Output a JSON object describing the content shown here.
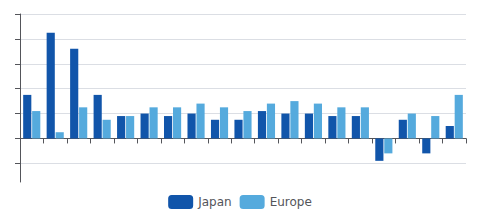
{
  "chart_data": {
    "type": "bar",
    "categories": [
      null,
      null,
      null,
      null,
      null,
      null,
      null,
      null,
      null,
      null,
      null,
      null,
      null,
      null,
      null,
      null,
      null,
      null,
      null
    ],
    "series": [
      {
        "name": "Japan",
        "color": "#1155aa",
        "values": [
          3.5,
          8.5,
          7.2,
          3.5,
          1.8,
          2.0,
          1.8,
          2.0,
          1.5,
          1.5,
          2.2,
          2.0,
          2.0,
          1.8,
          1.8,
          -1.8,
          1.5,
          -1.2,
          1.0
        ]
      },
      {
        "name": "Europe",
        "color": "#55aadd",
        "values": [
          2.2,
          0.5,
          2.5,
          1.5,
          1.8,
          2.5,
          2.5,
          2.8,
          2.5,
          2.2,
          2.8,
          3.0,
          2.8,
          2.5,
          2.5,
          -1.2,
          2.0,
          1.8,
          3.5
        ]
      }
    ],
    "ylim": [
      -3.5,
      10
    ],
    "yticks": [
      -2,
      0,
      2,
      4,
      6,
      8,
      10
    ],
    "grid": true,
    "legend": "bottom",
    "tick_labels": false
  }
}
